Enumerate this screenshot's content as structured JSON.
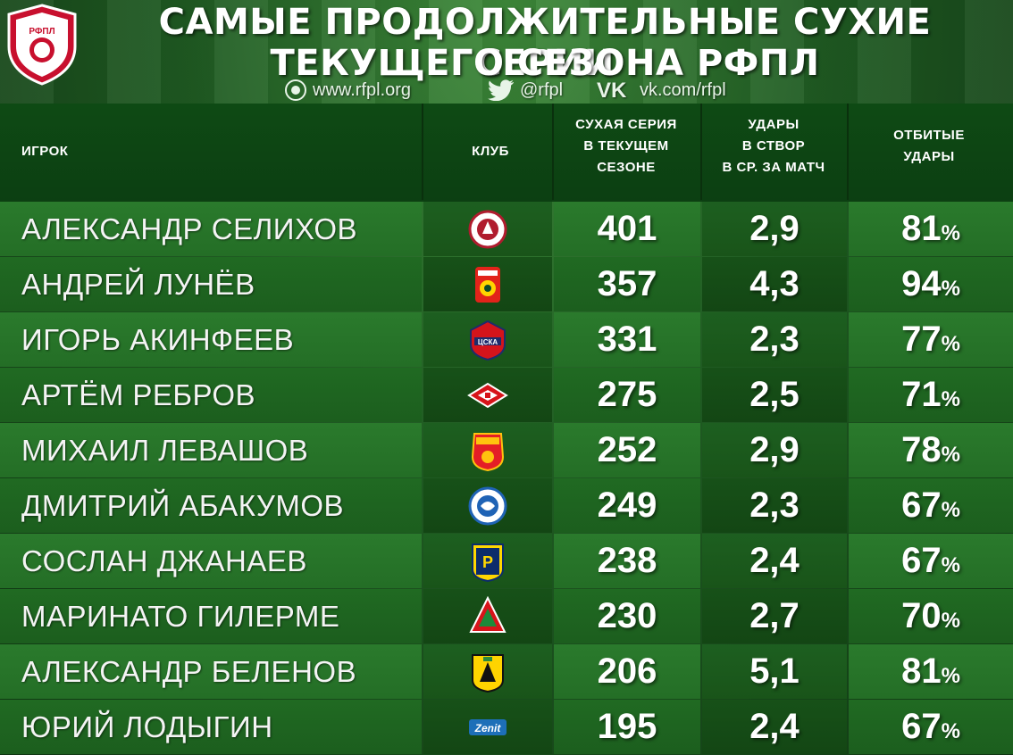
{
  "header": {
    "title_line1": "САМЫЕ ПРОДОЛЖИТЕЛЬНЫЕ СУХИЕ СЕРИИ",
    "title_line2": "ТЕКУЩЕГО СЕЗОНА РФПЛ",
    "logo_text": "РФПЛ",
    "social": {
      "website": "www.rfpl.org",
      "twitter": "@rfpl",
      "vk": "vk.com/rfpl"
    }
  },
  "columns": {
    "player": "ИГРОК",
    "club": "КЛУБ",
    "series_line1": "СУХАЯ СЕРИЯ",
    "series_line2": "В ТЕКУЩЕМ",
    "series_line3": "СЕЗОНЕ",
    "shots_line1": "УДАРЫ",
    "shots_line2": "В СТВОР",
    "shots_line3": "В СР. ЗА МАТЧ",
    "saves_line1": "ОТБИТЫЕ",
    "saves_line2": "УДАРЫ"
  },
  "rows": [
    {
      "player": "АЛЕКСАНДР СЕЛИХОВ",
      "club_icon": "amkar-icon",
      "series": "401",
      "shots": "2,9",
      "saves": "81",
      "pct": "%"
    },
    {
      "player": "АНДРЕЙ ЛУНЁВ",
      "club_icon": "ufa-icon",
      "series": "357",
      "shots": "4,3",
      "saves": "94",
      "pct": "%"
    },
    {
      "player": "ИГОРЬ АКИНФЕЕВ",
      "club_icon": "cska-icon",
      "series": "331",
      "shots": "2,3",
      "saves": "77",
      "pct": "%"
    },
    {
      "player": "АРТЁМ РЕБРОВ",
      "club_icon": "spartak-icon",
      "series": "275",
      "shots": "2,5",
      "saves": "71",
      "pct": "%"
    },
    {
      "player": "МИХАИЛ ЛЕВАШОВ",
      "club_icon": "arsenal-icon",
      "series": "252",
      "shots": "2,9",
      "saves": "78",
      "pct": "%"
    },
    {
      "player": "ДМИТРИЙ АБАКУМОВ",
      "club_icon": "orenburg-icon",
      "series": "249",
      "shots": "2,3",
      "saves": "67",
      "pct": "%"
    },
    {
      "player": "СОСЛАН ДЖАНАЕВ",
      "club_icon": "rostov-icon",
      "series": "238",
      "shots": "2,4",
      "saves": "67",
      "pct": "%"
    },
    {
      "player": "МАРИНАТО ГИЛЕРМЕ",
      "club_icon": "lokomotiv-icon",
      "series": "230",
      "shots": "2,7",
      "saves": "70",
      "pct": "%"
    },
    {
      "player": "АЛЕКСАНДР БЕЛЕНОВ",
      "club_icon": "anzhi-icon",
      "series": "206",
      "shots": "5,1",
      "saves": "81",
      "pct": "%"
    },
    {
      "player": "ЮРИЙ ЛОДЫГИН",
      "club_icon": "zenit-icon",
      "series": "195",
      "shots": "2,4",
      "saves": "67",
      "pct": "%"
    }
  ]
}
